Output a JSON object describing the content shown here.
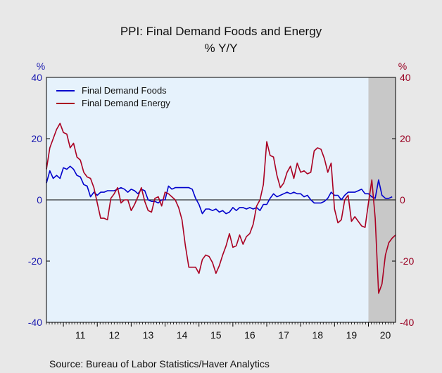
{
  "chart_data": {
    "type": "line",
    "title": "PPI: Final Demand Foods and Energy",
    "subtitle": "% Y/Y",
    "left_unit": "%",
    "right_unit": "%",
    "source": "Source:  Bureau of Labor Statistics/Haver Analytics",
    "ylim": [
      -40,
      40
    ],
    "yticks": [
      40,
      20,
      0,
      -20,
      -40
    ],
    "xlim": [
      2010.5,
      2020.8
    ],
    "x_tick_labels": [
      "11",
      "12",
      "13",
      "14",
      "15",
      "16",
      "17",
      "18",
      "19",
      "20"
    ],
    "x_tick_centers": [
      2011.5,
      2012.5,
      2013.5,
      2014.5,
      2015.5,
      2016.5,
      2017.5,
      2018.5,
      2019.5,
      2020.5
    ],
    "recession_shade": [
      2020.0,
      2020.8
    ],
    "legend_position": "top-left",
    "colors": {
      "plot_background": "#e6f2fc",
      "outer_background": "#e8e8e8",
      "recession": "#c8c8c8",
      "left_axis": "#1a1ab0",
      "right_axis": "#990022"
    },
    "series": [
      {
        "name": "Final Demand Foods",
        "color": "#0000cc",
        "points": [
          [
            2010.5,
            5.5
          ],
          [
            2010.6,
            9.5
          ],
          [
            2010.7,
            7.0
          ],
          [
            2010.8,
            8.0
          ],
          [
            2010.9,
            7.0
          ],
          [
            2011.0,
            10.5
          ],
          [
            2011.1,
            10.0
          ],
          [
            2011.2,
            11.0
          ],
          [
            2011.3,
            10.0
          ],
          [
            2011.4,
            8.0
          ],
          [
            2011.5,
            7.5
          ],
          [
            2011.6,
            5.0
          ],
          [
            2011.7,
            4.5
          ],
          [
            2011.8,
            1.0
          ],
          [
            2011.9,
            2.5
          ],
          [
            2012.0,
            1.5
          ],
          [
            2012.1,
            2.5
          ],
          [
            2012.2,
            2.5
          ],
          [
            2012.3,
            3.0
          ],
          [
            2012.4,
            3.0
          ],
          [
            2012.5,
            3.0
          ],
          [
            2012.6,
            3.5
          ],
          [
            2012.7,
            4.0
          ],
          [
            2012.8,
            3.5
          ],
          [
            2012.9,
            2.5
          ],
          [
            2013.0,
            3.5
          ],
          [
            2013.1,
            3.0
          ],
          [
            2013.2,
            2.0
          ],
          [
            2013.3,
            3.5
          ],
          [
            2013.4,
            3.0
          ],
          [
            2013.5,
            0.0
          ],
          [
            2013.6,
            -0.5
          ],
          [
            2013.7,
            -0.5
          ],
          [
            2013.8,
            -1.0
          ],
          [
            2013.9,
            0.0
          ],
          [
            2014.0,
            0.0
          ],
          [
            2014.1,
            4.5
          ],
          [
            2014.2,
            3.5
          ],
          [
            2014.3,
            4.0
          ],
          [
            2014.4,
            4.0
          ],
          [
            2014.5,
            4.0
          ],
          [
            2014.6,
            4.0
          ],
          [
            2014.7,
            4.0
          ],
          [
            2014.8,
            3.5
          ],
          [
            2014.9,
            0.5
          ],
          [
            2015.0,
            -1.5
          ],
          [
            2015.1,
            -4.5
          ],
          [
            2015.2,
            -3.0
          ],
          [
            2015.3,
            -3.0
          ],
          [
            2015.4,
            -3.5
          ],
          [
            2015.5,
            -3.0
          ],
          [
            2015.6,
            -4.0
          ],
          [
            2015.7,
            -3.5
          ],
          [
            2015.8,
            -4.5
          ],
          [
            2015.9,
            -4.0
          ],
          [
            2016.0,
            -2.5
          ],
          [
            2016.1,
            -3.5
          ],
          [
            2016.2,
            -2.5
          ],
          [
            2016.3,
            -2.5
          ],
          [
            2016.4,
            -3.0
          ],
          [
            2016.5,
            -2.5
          ],
          [
            2016.6,
            -3.0
          ],
          [
            2016.7,
            -2.5
          ],
          [
            2016.8,
            -3.5
          ],
          [
            2016.9,
            -1.5
          ],
          [
            2017.0,
            -1.5
          ],
          [
            2017.1,
            0.5
          ],
          [
            2017.2,
            2.0
          ],
          [
            2017.3,
            1.0
          ],
          [
            2017.4,
            1.5
          ],
          [
            2017.5,
            2.0
          ],
          [
            2017.6,
            2.5
          ],
          [
            2017.7,
            2.0
          ],
          [
            2017.8,
            2.5
          ],
          [
            2017.9,
            2.0
          ],
          [
            2018.0,
            2.0
          ],
          [
            2018.1,
            1.0
          ],
          [
            2018.2,
            1.5
          ],
          [
            2018.3,
            0.0
          ],
          [
            2018.4,
            -1.0
          ],
          [
            2018.5,
            -1.0
          ],
          [
            2018.6,
            -1.0
          ],
          [
            2018.7,
            -0.5
          ],
          [
            2018.8,
            0.5
          ],
          [
            2018.9,
            2.5
          ],
          [
            2019.0,
            1.5
          ],
          [
            2019.1,
            1.5
          ],
          [
            2019.2,
            0.0
          ],
          [
            2019.3,
            1.5
          ],
          [
            2019.4,
            2.5
          ],
          [
            2019.5,
            2.5
          ],
          [
            2019.6,
            2.5
          ],
          [
            2019.7,
            3.0
          ],
          [
            2019.8,
            3.5
          ],
          [
            2019.9,
            2.0
          ],
          [
            2020.0,
            2.0
          ],
          [
            2020.1,
            1.0
          ],
          [
            2020.2,
            0.5
          ],
          [
            2020.3,
            6.5
          ],
          [
            2020.4,
            1.5
          ],
          [
            2020.5,
            0.5
          ],
          [
            2020.6,
            0.5
          ],
          [
            2020.7,
            1.0
          ]
        ]
      },
      {
        "name": "Final Demand Energy",
        "color": "#aa0022",
        "points": [
          [
            2010.5,
            10.0
          ],
          [
            2010.6,
            17.0
          ],
          [
            2010.7,
            20.0
          ],
          [
            2010.8,
            23.0
          ],
          [
            2010.9,
            25.0
          ],
          [
            2011.0,
            22.0
          ],
          [
            2011.1,
            21.5
          ],
          [
            2011.2,
            17.0
          ],
          [
            2011.3,
            18.5
          ],
          [
            2011.4,
            14.0
          ],
          [
            2011.5,
            13.0
          ],
          [
            2011.6,
            9.0
          ],
          [
            2011.7,
            7.5
          ],
          [
            2011.8,
            7.0
          ],
          [
            2011.9,
            4.0
          ],
          [
            2012.0,
            -1.0
          ],
          [
            2012.1,
            -6.0
          ],
          [
            2012.2,
            -6.0
          ],
          [
            2012.3,
            -6.5
          ],
          [
            2012.4,
            0.5
          ],
          [
            2012.5,
            2.0
          ],
          [
            2012.6,
            4.0
          ],
          [
            2012.7,
            -1.0
          ],
          [
            2012.8,
            0.0
          ],
          [
            2012.9,
            0.0
          ],
          [
            2013.0,
            -3.5
          ],
          [
            2013.1,
            -1.5
          ],
          [
            2013.2,
            1.0
          ],
          [
            2013.3,
            4.0
          ],
          [
            2013.4,
            -0.5
          ],
          [
            2013.5,
            -3.5
          ],
          [
            2013.6,
            -4.0
          ],
          [
            2013.7,
            0.5
          ],
          [
            2013.8,
            1.0
          ],
          [
            2013.9,
            -2.0
          ],
          [
            2014.0,
            2.5
          ],
          [
            2014.1,
            2.0
          ],
          [
            2014.2,
            1.0
          ],
          [
            2014.3,
            0.0
          ],
          [
            2014.4,
            -2.5
          ],
          [
            2014.5,
            -6.5
          ],
          [
            2014.6,
            -15.0
          ],
          [
            2014.7,
            -22.0
          ],
          [
            2014.8,
            -22.0
          ],
          [
            2014.9,
            -22.0
          ],
          [
            2015.0,
            -24.0
          ],
          [
            2015.1,
            -19.5
          ],
          [
            2015.2,
            -18.0
          ],
          [
            2015.3,
            -18.5
          ],
          [
            2015.4,
            -20.5
          ],
          [
            2015.5,
            -24.0
          ],
          [
            2015.6,
            -21.5
          ],
          [
            2015.7,
            -18.0
          ],
          [
            2015.8,
            -15.0
          ],
          [
            2015.9,
            -11.0
          ],
          [
            2016.0,
            -15.5
          ],
          [
            2016.1,
            -15.0
          ],
          [
            2016.2,
            -11.5
          ],
          [
            2016.3,
            -14.5
          ],
          [
            2016.4,
            -12.0
          ],
          [
            2016.5,
            -11.0
          ],
          [
            2016.6,
            -8.0
          ],
          [
            2016.7,
            -2.0
          ],
          [
            2016.8,
            0.0
          ],
          [
            2016.9,
            5.0
          ],
          [
            2017.0,
            19.0
          ],
          [
            2017.1,
            14.5
          ],
          [
            2017.2,
            14.0
          ],
          [
            2017.3,
            8.0
          ],
          [
            2017.4,
            4.0
          ],
          [
            2017.5,
            5.5
          ],
          [
            2017.6,
            9.0
          ],
          [
            2017.7,
            11.0
          ],
          [
            2017.8,
            7.0
          ],
          [
            2017.9,
            12.0
          ],
          [
            2018.0,
            9.0
          ],
          [
            2018.1,
            9.5
          ],
          [
            2018.2,
            8.5
          ],
          [
            2018.3,
            9.0
          ],
          [
            2018.4,
            16.0
          ],
          [
            2018.5,
            17.0
          ],
          [
            2018.6,
            16.5
          ],
          [
            2018.7,
            13.5
          ],
          [
            2018.8,
            9.0
          ],
          [
            2018.9,
            12.0
          ],
          [
            2019.0,
            -3.0
          ],
          [
            2019.1,
            -7.5
          ],
          [
            2019.2,
            -6.5
          ],
          [
            2019.3,
            0.0
          ],
          [
            2019.4,
            1.5
          ],
          [
            2019.5,
            -7.0
          ],
          [
            2019.6,
            -5.5
          ],
          [
            2019.7,
            -7.0
          ],
          [
            2019.8,
            -8.5
          ],
          [
            2019.9,
            -9.0
          ],
          [
            2020.0,
            -1.0
          ],
          [
            2020.1,
            6.5
          ],
          [
            2020.2,
            -6.0
          ],
          [
            2020.3,
            -30.5
          ],
          [
            2020.4,
            -27.5
          ],
          [
            2020.5,
            -18.0
          ],
          [
            2020.6,
            -14.0
          ],
          [
            2020.7,
            -12.5
          ],
          [
            2020.8,
            -11.5
          ]
        ]
      }
    ]
  }
}
